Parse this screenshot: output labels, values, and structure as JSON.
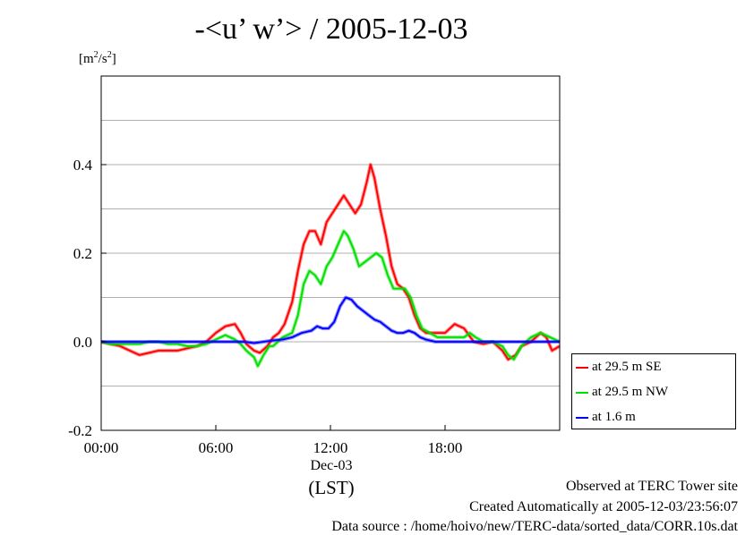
{
  "title": "-<u’ w’> / 2005-12-03",
  "units": {
    "prefix": "[m",
    "sup1": "2",
    "mid": "/s",
    "sup2": "2",
    "suffix": "]"
  },
  "x_axis": {
    "date_label": "Dec-03",
    "unit_label": "(LST)"
  },
  "footer": {
    "line1": "Observed at TERC Tower site",
    "line2": "Created Automatically at 2005-12-03/23:56:07",
    "line3": "Data source : /home/hoivo/new/TERC-data/sorted_data/CORR.10s.dat"
  },
  "colors": {
    "red": "#ff0000",
    "green": "#00e000",
    "blue": "#0000ff"
  },
  "chart_data": {
    "type": "line",
    "title": "-<u’ w’> / 2005-12-03",
    "ylabel": "[m2/s2]",
    "xlabel": "(LST)",
    "xlim": [
      0,
      24
    ],
    "ylim": [
      -0.2,
      0.6
    ],
    "x_ticks": [
      0,
      6,
      12,
      18
    ],
    "x_tick_labels": [
      "00:00",
      "06:00",
      "12:00",
      "18:00"
    ],
    "y_ticks": [
      -0.2,
      0.0,
      0.2,
      0.4
    ],
    "y_tick_labels": [
      "-0.2",
      "0.0",
      "0.2",
      "0.4"
    ],
    "grid": true,
    "legend_position": "outside-right",
    "series": [
      {
        "name": "at 29.5 m SE",
        "color": "#ff0000",
        "points": [
          [
            0,
            0
          ],
          [
            0.5,
            -0.005
          ],
          [
            1,
            -0.01
          ],
          [
            1.5,
            -0.02
          ],
          [
            2,
            -0.03
          ],
          [
            2.5,
            -0.025
          ],
          [
            3,
            -0.02
          ],
          [
            3.5,
            -0.02
          ],
          [
            4,
            -0.02
          ],
          [
            4.5,
            -0.015
          ],
          [
            5,
            -0.01
          ],
          [
            5.5,
            0
          ],
          [
            6,
            0.02
          ],
          [
            6.5,
            0.035
          ],
          [
            7,
            0.04
          ],
          [
            7.3,
            0.02
          ],
          [
            7.6,
            -0.005
          ],
          [
            8,
            -0.02
          ],
          [
            8.3,
            -0.025
          ],
          [
            8.7,
            -0.01
          ],
          [
            9,
            0.01
          ],
          [
            9.3,
            0.02
          ],
          [
            9.6,
            0.04
          ],
          [
            10,
            0.09
          ],
          [
            10.3,
            0.16
          ],
          [
            10.6,
            0.22
          ],
          [
            10.9,
            0.25
          ],
          [
            11.2,
            0.25
          ],
          [
            11.5,
            0.22
          ],
          [
            11.8,
            0.27
          ],
          [
            12.1,
            0.29
          ],
          [
            12.4,
            0.31
          ],
          [
            12.7,
            0.33
          ],
          [
            13,
            0.31
          ],
          [
            13.3,
            0.29
          ],
          [
            13.6,
            0.31
          ],
          [
            13.9,
            0.36
          ],
          [
            14.1,
            0.4
          ],
          [
            14.3,
            0.37
          ],
          [
            14.6,
            0.3
          ],
          [
            14.9,
            0.24
          ],
          [
            15.2,
            0.17
          ],
          [
            15.5,
            0.13
          ],
          [
            15.8,
            0.12
          ],
          [
            16.1,
            0.1
          ],
          [
            16.4,
            0.06
          ],
          [
            16.7,
            0.03
          ],
          [
            17,
            0.02
          ],
          [
            17.5,
            0.02
          ],
          [
            18,
            0.02
          ],
          [
            18.5,
            0.04
          ],
          [
            19,
            0.03
          ],
          [
            19.5,
            0
          ],
          [
            20,
            -0.005
          ],
          [
            20.5,
            0
          ],
          [
            21,
            -0.02
          ],
          [
            21.3,
            -0.04
          ],
          [
            21.7,
            -0.03
          ],
          [
            22,
            -0.01
          ],
          [
            22.5,
            0
          ],
          [
            23,
            0.02
          ],
          [
            23.3,
            0.01
          ],
          [
            23.6,
            -0.02
          ],
          [
            24,
            -0.01
          ]
        ]
      },
      {
        "name": "at 29.5 m NW",
        "color": "#00e000",
        "points": [
          [
            0,
            0
          ],
          [
            0.5,
            -0.005
          ],
          [
            1,
            -0.005
          ],
          [
            1.5,
            -0.005
          ],
          [
            2,
            -0.005
          ],
          [
            2.5,
            0
          ],
          [
            3,
            0
          ],
          [
            3.5,
            -0.005
          ],
          [
            4,
            -0.005
          ],
          [
            4.5,
            -0.01
          ],
          [
            5,
            -0.01
          ],
          [
            5.5,
            -0.005
          ],
          [
            6,
            0.005
          ],
          [
            6.5,
            0.015
          ],
          [
            7,
            0.005
          ],
          [
            7.3,
            -0.005
          ],
          [
            7.6,
            -0.02
          ],
          [
            8,
            -0.035
          ],
          [
            8.2,
            -0.055
          ],
          [
            8.5,
            -0.03
          ],
          [
            8.8,
            -0.01
          ],
          [
            9,
            -0.01
          ],
          [
            9.5,
            0.01
          ],
          [
            10,
            0.02
          ],
          [
            10.3,
            0.06
          ],
          [
            10.6,
            0.13
          ],
          [
            10.9,
            0.16
          ],
          [
            11.2,
            0.15
          ],
          [
            11.5,
            0.13
          ],
          [
            11.8,
            0.17
          ],
          [
            12.1,
            0.19
          ],
          [
            12.4,
            0.22
          ],
          [
            12.7,
            0.25
          ],
          [
            12.9,
            0.24
          ],
          [
            13.2,
            0.21
          ],
          [
            13.5,
            0.17
          ],
          [
            13.8,
            0.18
          ],
          [
            14.1,
            0.19
          ],
          [
            14.4,
            0.2
          ],
          [
            14.7,
            0.19
          ],
          [
            15,
            0.15
          ],
          [
            15.3,
            0.12
          ],
          [
            15.6,
            0.12
          ],
          [
            15.9,
            0.12
          ],
          [
            16.2,
            0.1
          ],
          [
            16.5,
            0.06
          ],
          [
            16.8,
            0.03
          ],
          [
            17.2,
            0.02
          ],
          [
            17.6,
            0.01
          ],
          [
            18,
            0.01
          ],
          [
            18.5,
            0.01
          ],
          [
            19,
            0.01
          ],
          [
            19.3,
            0.02
          ],
          [
            19.6,
            0.01
          ],
          [
            20,
            0
          ],
          [
            20.5,
            0
          ],
          [
            21,
            -0.01
          ],
          [
            21.3,
            -0.03
          ],
          [
            21.6,
            -0.04
          ],
          [
            22,
            -0.01
          ],
          [
            22.5,
            0.01
          ],
          [
            23,
            0.02
          ],
          [
            23.5,
            0.01
          ],
          [
            24,
            0
          ]
        ]
      },
      {
        "name": "at 1.6 m",
        "color": "#0000ff",
        "points": [
          [
            0,
            0
          ],
          [
            1,
            0
          ],
          [
            2,
            0
          ],
          [
            3,
            0
          ],
          [
            4,
            0
          ],
          [
            5,
            0
          ],
          [
            6,
            0
          ],
          [
            7,
            0
          ],
          [
            7.5,
            0
          ],
          [
            8,
            -0.003
          ],
          [
            8.5,
            0
          ],
          [
            9,
            0.003
          ],
          [
            9.5,
            0.005
          ],
          [
            10,
            0.01
          ],
          [
            10.5,
            0.02
          ],
          [
            11,
            0.025
          ],
          [
            11.3,
            0.035
          ],
          [
            11.6,
            0.03
          ],
          [
            11.9,
            0.03
          ],
          [
            12.2,
            0.045
          ],
          [
            12.5,
            0.08
          ],
          [
            12.8,
            0.1
          ],
          [
            13.1,
            0.095
          ],
          [
            13.4,
            0.08
          ],
          [
            13.7,
            0.07
          ],
          [
            14,
            0.06
          ],
          [
            14.3,
            0.05
          ],
          [
            14.6,
            0.045
          ],
          [
            14.9,
            0.035
          ],
          [
            15.2,
            0.025
          ],
          [
            15.5,
            0.02
          ],
          [
            15.8,
            0.02
          ],
          [
            16.1,
            0.025
          ],
          [
            16.4,
            0.02
          ],
          [
            16.7,
            0.01
          ],
          [
            17,
            0.005
          ],
          [
            17.5,
            0
          ],
          [
            18,
            0
          ],
          [
            19,
            0
          ],
          [
            20,
            0
          ],
          [
            21,
            0
          ],
          [
            22,
            0
          ],
          [
            23,
            0
          ],
          [
            24,
            0
          ]
        ]
      }
    ]
  }
}
